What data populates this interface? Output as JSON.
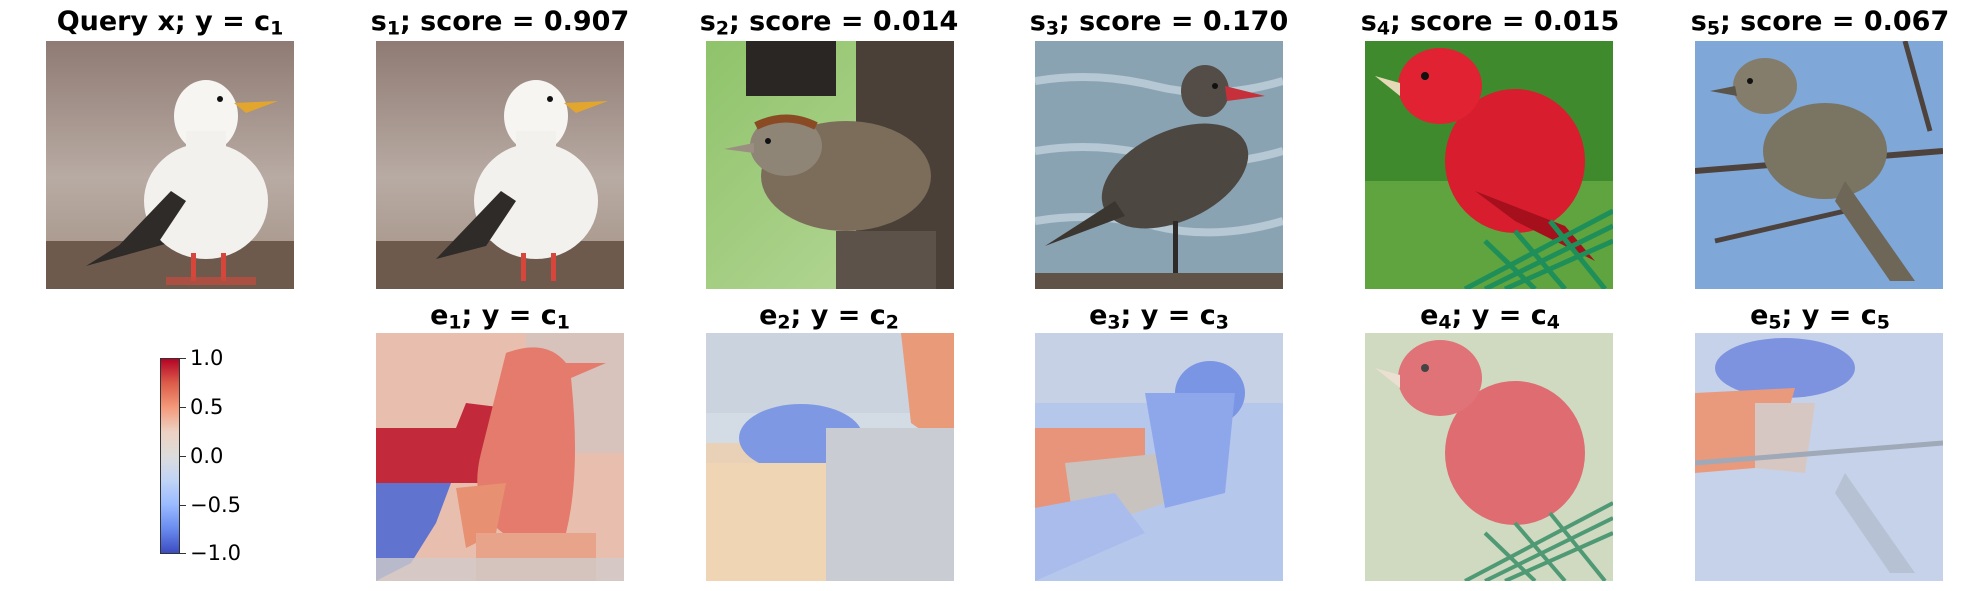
{
  "query_title": {
    "pre": "Query x; y = c",
    "sub": "1"
  },
  "top_titles": [
    {
      "s": "s",
      "sub": "1",
      "text": "; score = 0.907"
    },
    {
      "s": "s",
      "sub": "2",
      "text": "; score = 0.014"
    },
    {
      "s": "s",
      "sub": "3",
      "text": "; score = 0.170"
    },
    {
      "s": "s",
      "sub": "4",
      "text": "; score = 0.015"
    },
    {
      "s": "s",
      "sub": "5",
      "text": "; score = 0.067"
    }
  ],
  "bottom_titles": [
    {
      "e": "e",
      "esub": "1",
      "mid": "; y = c",
      "csub": "1"
    },
    {
      "e": "e",
      "esub": "2",
      "mid": "; y = c",
      "csub": "2"
    },
    {
      "e": "e",
      "esub": "3",
      "mid": "; y = c",
      "csub": "3"
    },
    {
      "e": "e",
      "esub": "4",
      "mid": "; y = c",
      "csub": "4"
    },
    {
      "e": "e",
      "esub": "5",
      "mid": "; y = c",
      "csub": "5"
    }
  ],
  "colorbar": {
    "ticks": [
      "1.0",
      "0.5",
      "0.0",
      "−0.5",
      "−1.0"
    ],
    "colormap": "coolwarm",
    "range": [
      -1.0,
      1.0
    ]
  },
  "images": [
    {
      "name": "query-gull",
      "subject": "white seagull on rock"
    },
    {
      "name": "s1-gull",
      "subject": "white seagull on rock"
    },
    {
      "name": "s2-sparrow",
      "subject": "sparrow on feeder"
    },
    {
      "name": "s3-gull",
      "subject": "dark gull in water"
    },
    {
      "name": "s4-tanager",
      "subject": "red bird on green net"
    },
    {
      "name": "s5-sparrow",
      "subject": "sparrow on branch"
    }
  ],
  "colors": {
    "red_strong": "#b40426",
    "red_mid": "#dc5d4a",
    "neutral": "#dddcdc",
    "blue_mid": "#6a8bef",
    "blue_strong": "#3b4cc0"
  }
}
